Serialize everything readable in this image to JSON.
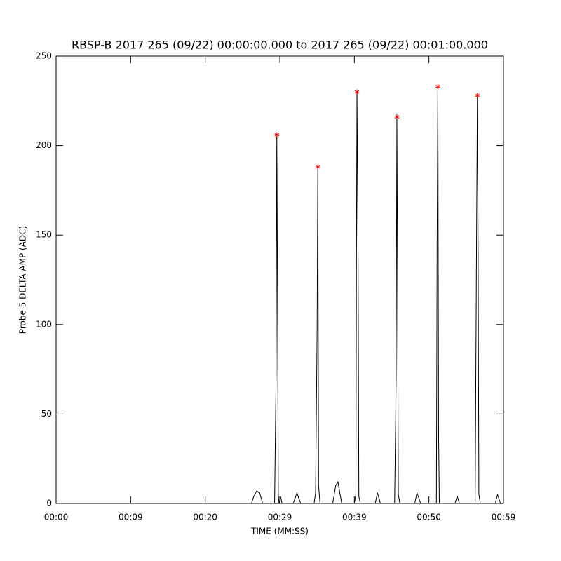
{
  "chart_data": {
    "type": "line",
    "title": "RBSP-B 2017 265 (09/22) 00:00:00.000 to 2017 265 (09/22) 00:01:00.000",
    "xlabel": "TIME (MM:SS)",
    "ylabel": "Probe 5 DELTA AMP (ADC)",
    "xlim": [
      0,
      60
    ],
    "xticks": [
      {
        "value": 0,
        "label": "00:00"
      },
      {
        "value": 10,
        "label": "00:09"
      },
      {
        "value": 20,
        "label": "00:20"
      },
      {
        "value": 30,
        "label": "00:29"
      },
      {
        "value": 40,
        "label": "00:39"
      },
      {
        "value": 50,
        "label": "00:50"
      },
      {
        "value": 60,
        "label": "00:59"
      }
    ],
    "ylim": [
      0,
      250
    ],
    "yticks": [
      0,
      50,
      100,
      150,
      200,
      250
    ],
    "series": [
      {
        "color": "#000000",
        "marker": "none",
        "x": [
          0,
          26.2,
          26.5,
          26.9,
          27.3,
          27.7,
          29.3,
          29.5,
          29.6,
          29.7,
          29.8,
          29.9,
          30.1,
          30.3,
          31.8,
          32.3,
          32.8,
          34.6,
          34.8,
          35.0,
          35.1,
          35.2,
          35.4,
          37.1,
          37.5,
          37.8,
          38.3,
          40.0,
          40.2,
          40.3,
          40.35,
          40.5,
          40.6,
          40.8,
          42.8,
          43.1,
          43.5,
          45.4,
          45.6,
          45.7,
          45.8,
          45.9,
          46.1,
          48.1,
          48.4,
          48.9,
          51.0,
          51.1,
          51.2,
          51.3,
          51.4,
          53.5,
          53.8,
          54.1,
          56.2,
          56.4,
          56.5,
          56.6,
          56.7,
          56.9,
          58.9,
          59.2,
          59.6
        ],
        "values": [
          0,
          0,
          4,
          7,
          6,
          0,
          0,
          70,
          206,
          113,
          5,
          0,
          4,
          0,
          0,
          6,
          0,
          0,
          6,
          95,
          188,
          10,
          0,
          0,
          10,
          12,
          0,
          0,
          5,
          167,
          230,
          135,
          4,
          0,
          0,
          6,
          0,
          0,
          68,
          216,
          121,
          5,
          0,
          0,
          6,
          0,
          0,
          146,
          233,
          36,
          0,
          0,
          4,
          0,
          0,
          156,
          228,
          140,
          5,
          0,
          0,
          5,
          0
        ]
      },
      {
        "color": "#ff0000",
        "marker": "asterisk",
        "x": [
          29.6,
          35.1,
          40.35,
          45.7,
          51.2,
          56.5
        ],
        "values": [
          206,
          188,
          230,
          216,
          233,
          228
        ]
      }
    ]
  }
}
